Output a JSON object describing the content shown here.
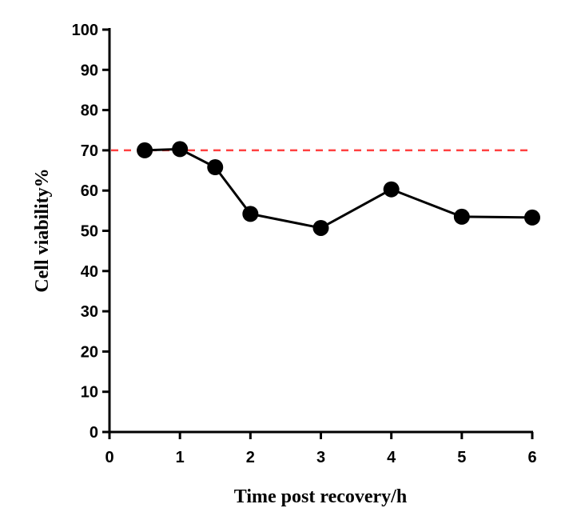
{
  "chart_data": {
    "type": "line",
    "title": "",
    "xlabel": "Time post recovery/h",
    "ylabel": "Cell viability%",
    "xlim": [
      0,
      6
    ],
    "ylim": [
      0,
      100
    ],
    "xticks": [
      0,
      1,
      2,
      3,
      4,
      5,
      6
    ],
    "yticks": [
      0,
      10,
      20,
      30,
      40,
      50,
      60,
      70,
      80,
      90,
      100
    ],
    "grid": false,
    "series": [
      {
        "x": [
          0.5,
          1,
          1.5,
          2,
          3,
          4,
          5,
          6
        ],
        "y": [
          70,
          70.3,
          65.8,
          54.2,
          50.7,
          60.3,
          53.5,
          53.3
        ],
        "color": "#000000",
        "marker": "circle"
      }
    ],
    "reference_lines": [
      {
        "axis": "y",
        "value": 70,
        "color": "#ff4040",
        "style": "dashed"
      }
    ]
  }
}
